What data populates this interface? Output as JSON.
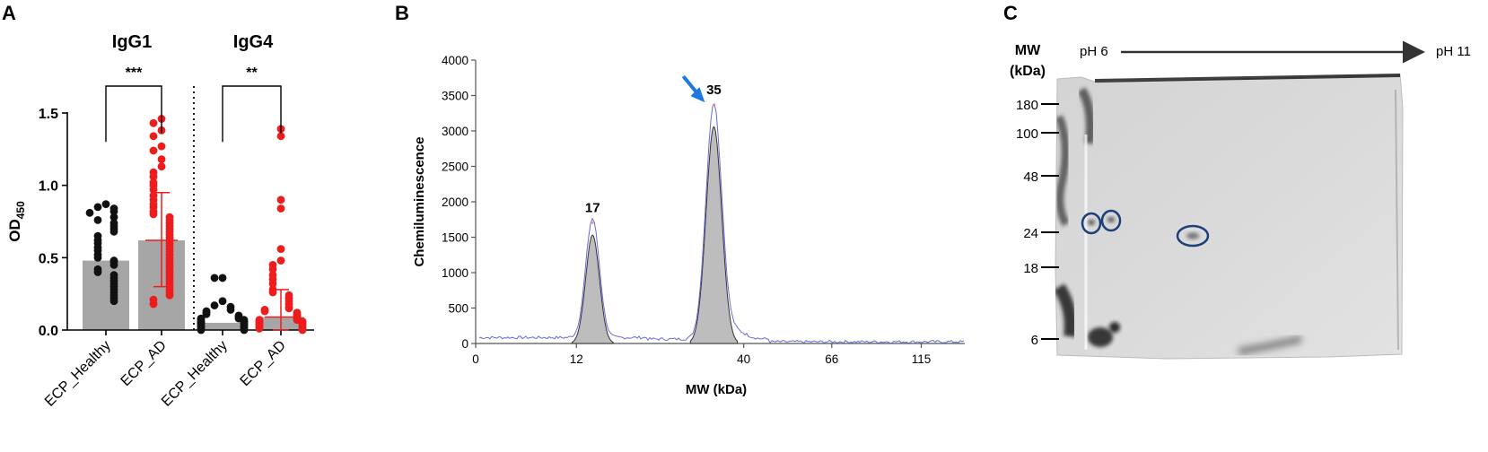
{
  "panel_labels": {
    "a": "A",
    "b": "B",
    "c": "C"
  },
  "colors": {
    "healthy": "#111111",
    "ad": "#ee1c1c",
    "bar": "#a6a6a6",
    "trace": "#6a6ad6",
    "peak": "#bdbdbd",
    "arrow": "#1f78e0",
    "circle": "#1e3f7a"
  },
  "chart_data": [
    {
      "panel": "A",
      "type": "scatter",
      "title_groups": [
        "IgG1",
        "IgG4"
      ],
      "ylabel_main": "OD",
      "ylabel_sub": "450",
      "ylim": [
        0,
        1.5
      ],
      "yticks": [
        0.0,
        0.5,
        1.0,
        1.5
      ],
      "ytick_labels": [
        "0.0",
        "0.5",
        "1.0",
        "1.5"
      ],
      "categories": [
        "ECP_Healthy",
        "ECP_AD",
        "ECP_Healthy",
        "ECP_AD"
      ],
      "significance": [
        {
          "group": "IgG1",
          "label": "***"
        },
        {
          "group": "IgG4",
          "label": "**"
        }
      ],
      "series": [
        {
          "category_index": 0,
          "color_key": "healthy",
          "bar": 0.48,
          "sd": null,
          "values": [
            0.87,
            0.85,
            0.84,
            0.82,
            0.81,
            0.78,
            0.76,
            0.74,
            0.72,
            0.7,
            0.68,
            0.65,
            0.62,
            0.6,
            0.57,
            0.55,
            0.52,
            0.5,
            0.48,
            0.47,
            0.45,
            0.42,
            0.4,
            0.38,
            0.36,
            0.34,
            0.32,
            0.3,
            0.28,
            0.26,
            0.24,
            0.22,
            0.2
          ]
        },
        {
          "category_index": 1,
          "color_key": "ad",
          "bar": 0.62,
          "sd": [
            0.3,
            0.95
          ],
          "values": [
            1.46,
            1.43,
            1.38,
            1.34,
            1.27,
            1.24,
            1.18,
            1.13,
            1.09,
            1.06,
            1.02,
            1.0,
            0.97,
            0.93,
            0.9,
            0.87,
            0.85,
            0.82,
            0.8,
            0.78,
            0.76,
            0.74,
            0.72,
            0.7,
            0.68,
            0.66,
            0.64,
            0.62,
            0.6,
            0.58,
            0.56,
            0.54,
            0.52,
            0.5,
            0.48,
            0.46,
            0.44,
            0.42,
            0.4,
            0.38,
            0.36,
            0.34,
            0.32,
            0.3,
            0.28,
            0.26,
            0.24,
            0.21,
            0.18
          ]
        },
        {
          "category_index": 2,
          "color_key": "healthy",
          "bar": 0.05,
          "sd": null,
          "values": [
            0.36,
            0.36,
            0.2,
            0.17,
            0.16,
            0.14,
            0.13,
            0.12,
            0.11,
            0.1,
            0.09,
            0.08,
            0.08,
            0.07,
            0.07,
            0.06,
            0.06,
            0.05,
            0.05,
            0.05,
            0.04,
            0.04,
            0.03,
            0.03,
            0.02,
            0.02,
            0.01,
            0.01,
            0.0,
            0.0
          ]
        },
        {
          "category_index": 3,
          "color_key": "ad",
          "bar": 0.09,
          "sd": [
            0.0,
            0.28
          ],
          "values": [
            1.39,
            1.34,
            0.9,
            0.84,
            0.56,
            0.48,
            0.45,
            0.42,
            0.38,
            0.35,
            0.32,
            0.28,
            0.26,
            0.24,
            0.22,
            0.2,
            0.18,
            0.16,
            0.15,
            0.14,
            0.13,
            0.12,
            0.11,
            0.1,
            0.09,
            0.08,
            0.07,
            0.07,
            0.06,
            0.06,
            0.05,
            0.05,
            0.04,
            0.04,
            0.03,
            0.03,
            0.02,
            0.02,
            0.01,
            0.01,
            0.0
          ]
        }
      ]
    },
    {
      "panel": "B",
      "type": "area",
      "xlabel": "MW (kDa)",
      "ylabel": "Chemiluminescence",
      "ylim": [
        0,
        4000
      ],
      "yticks": [
        0,
        500,
        1000,
        1500,
        2000,
        2500,
        3000,
        3500,
        4000
      ],
      "xticks": [
        {
          "label": "0",
          "pos": 0
        },
        {
          "label": "12",
          "pos": 0.206
        },
        {
          "label": "40",
          "pos": 0.548
        },
        {
          "label": "66",
          "pos": 0.728
        },
        {
          "label": "115",
          "pos": 0.911
        }
      ],
      "peaks": [
        {
          "label": "17",
          "pos": 0.239,
          "height": 1680,
          "area_height": 1530,
          "width": 0.014
        },
        {
          "label": "35",
          "pos": 0.487,
          "height": 3340,
          "area_height": 3060,
          "width": 0.016
        }
      ],
      "baseline": 70,
      "arrow_target": "35"
    },
    {
      "panel": "C",
      "type": "blot",
      "mw_title_1": "MW",
      "mw_title_2": "(kDa)",
      "ph_start": "pH 6",
      "ph_end": "pH 11",
      "mw_markers": [
        "180",
        "100",
        "48",
        "24",
        "18",
        "6"
      ],
      "spots_circled": 3
    }
  ]
}
